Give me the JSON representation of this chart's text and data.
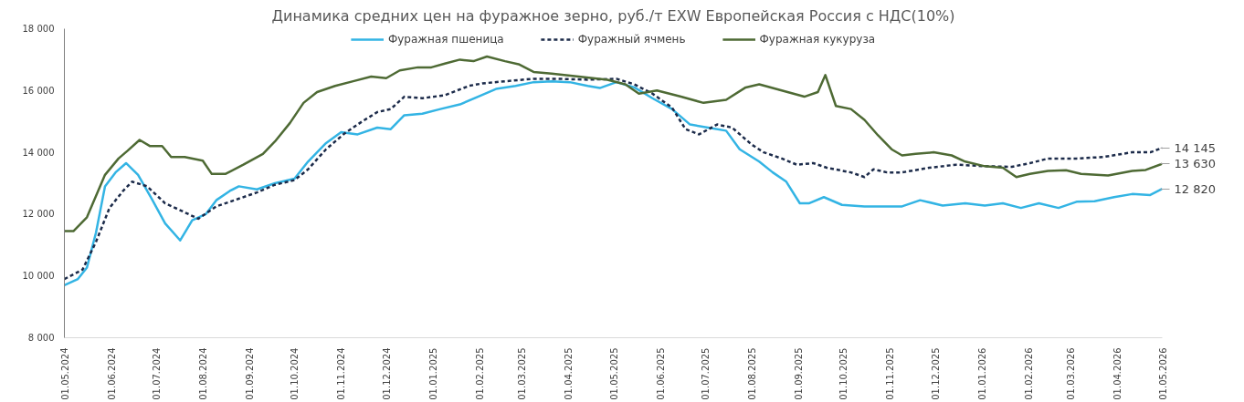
{
  "chart_data": {
    "type": "line",
    "title": "Динамика средних цен на фуражное зерно, руб./т EXW Европейская Россия с НДС(10%)",
    "legend": "top",
    "grid": false,
    "line_style": "solid",
    "xlim": [
      "2024-05-01",
      "2026-05-01"
    ],
    "xticks": [
      {
        "value": "2024-05-01",
        "label": "01.05.2024"
      },
      {
        "value": "2024-06-01",
        "label": "01.06.2024"
      },
      {
        "value": "2024-07-01",
        "label": "01.07.2024"
      },
      {
        "value": "2024-08-01",
        "label": "01.08.2024"
      },
      {
        "value": "2024-09-01",
        "label": "01.09.2024"
      },
      {
        "value": "2024-10-01",
        "label": "01.10.2024"
      },
      {
        "value": "2024-11-01",
        "label": "01.11.2024"
      },
      {
        "value": "2024-12-01",
        "label": "01.12.2024"
      },
      {
        "value": "2025-01-01",
        "label": "01.01.2025"
      },
      {
        "value": "2025-02-01",
        "label": "01.02.2025"
      },
      {
        "value": "2025-03-01",
        "label": "01.03.2025"
      },
      {
        "value": "2025-04-01",
        "label": "01.04.2025"
      },
      {
        "value": "2025-05-01",
        "label": "01.05.2025"
      },
      {
        "value": "2025-06-01",
        "label": "01.06.2025"
      },
      {
        "value": "2025-07-01",
        "label": "01.07.2025"
      },
      {
        "value": "2025-08-01",
        "label": "01.08.2025"
      },
      {
        "value": "2025-09-01",
        "label": "01.09.2025"
      },
      {
        "value": "2025-10-01",
        "label": "01.10.2025"
      },
      {
        "value": "2025-11-01",
        "label": "01.11.2025"
      },
      {
        "value": "2025-12-01",
        "label": "01.12.2025"
      },
      {
        "value": "2026-01-01",
        "label": "01.01.2026"
      },
      {
        "value": "2026-02-01",
        "label": "01.02.2026"
      },
      {
        "value": "2026-03-01",
        "label": "01.03.2026"
      },
      {
        "value": "2026-04-01",
        "label": "01.04.2026"
      },
      {
        "value": "2026-05-01",
        "label": "01.05.2026"
      }
    ],
    "ylim": [
      8000,
      18000
    ],
    "yticks": [
      {
        "value": 8000,
        "label": "8 000"
      },
      {
        "value": 10000,
        "label": "10 000"
      },
      {
        "value": 12000,
        "label": "12 000"
      },
      {
        "value": 14000,
        "label": "14 000"
      },
      {
        "value": 16000,
        "label": "16 000"
      },
      {
        "value": 18000,
        "label": "18 000"
      }
    ],
    "series": [
      {
        "name": "Фуражная пшеница",
        "color": "#33b4e4",
        "x": [
          "2024-05-01",
          "2024-05-10",
          "2024-05-16",
          "2024-05-22",
          "2024-05-28",
          "2024-06-04",
          "2024-06-11",
          "2024-06-19",
          "2024-06-28",
          "2024-07-07",
          "2024-07-17",
          "2024-07-25",
          "2024-08-03",
          "2024-08-10",
          "2024-08-19",
          "2024-08-25",
          "2024-09-06",
          "2024-09-18",
          "2024-10-01",
          "2024-10-10",
          "2024-10-22",
          "2024-11-01",
          "2024-11-12",
          "2024-11-25",
          "2024-12-04",
          "2024-12-13",
          "2024-12-25",
          "2025-01-06",
          "2025-01-19",
          "2025-01-31",
          "2025-02-12",
          "2025-02-25",
          "2025-03-09",
          "2025-03-21",
          "2025-04-02",
          "2025-04-14",
          "2025-04-22",
          "2025-05-03",
          "2025-05-15",
          "2025-05-27",
          "2025-06-09",
          "2025-06-21",
          "2025-07-03",
          "2025-07-15",
          "2025-07-24",
          "2025-08-06",
          "2025-08-15",
          "2025-08-24",
          "2025-09-02",
          "2025-09-08",
          "2025-09-18",
          "2025-09-30",
          "2025-10-15",
          "2025-11-09",
          "2025-11-21",
          "2025-12-06",
          "2025-12-21",
          "2026-01-03",
          "2026-01-15",
          "2026-01-27",
          "2026-02-08",
          "2026-02-21",
          "2026-03-05",
          "2026-03-17",
          "2026-03-30",
          "2026-04-11",
          "2026-04-23",
          "2026-05-01"
        ],
        "values": [
          9700,
          9900,
          10270,
          11400,
          12900,
          13350,
          13650,
          13270,
          12500,
          11700,
          11150,
          11800,
          12000,
          12450,
          12750,
          12900,
          12800,
          13000,
          13150,
          13700,
          14300,
          14650,
          14580,
          14800,
          14750,
          15200,
          15250,
          15400,
          15550,
          15800,
          16050,
          16150,
          16270,
          16300,
          16270,
          16150,
          16080,
          16270,
          16100,
          15750,
          15400,
          14900,
          14800,
          14700,
          14100,
          13700,
          13350,
          13050,
          12350,
          12350,
          12550,
          12300,
          12250,
          12250,
          12450,
          12280,
          12350,
          12280,
          12350,
          12200,
          12350,
          12200,
          12400,
          12420,
          12550,
          12650,
          12620,
          12820
        ]
      },
      {
        "name": "Фуражный ячмень",
        "color": "#1c2b4a",
        "line_style": "dashed",
        "x": [
          "2024-05-01",
          "2024-05-13",
          "2024-05-22",
          "2024-05-31",
          "2024-06-09",
          "2024-06-15",
          "2024-06-25",
          "2024-07-07",
          "2024-07-16",
          "2024-07-29",
          "2024-08-10",
          "2024-08-22",
          "2024-09-06",
          "2024-09-18",
          "2024-10-01",
          "2024-10-10",
          "2024-10-22",
          "2024-11-03",
          "2024-11-15",
          "2024-11-25",
          "2024-12-04",
          "2024-12-13",
          "2024-12-25",
          "2025-01-09",
          "2025-01-25",
          "2025-02-03",
          "2025-02-18",
          "2025-03-09",
          "2025-03-24",
          "2025-04-14",
          "2025-05-03",
          "2025-05-15",
          "2025-05-27",
          "2025-06-09",
          "2025-06-18",
          "2025-06-27",
          "2025-07-09",
          "2025-07-19",
          "2025-08-01",
          "2025-08-09",
          "2025-08-21",
          "2025-08-31",
          "2025-09-11",
          "2025-09-20",
          "2025-10-06",
          "2025-10-15",
          "2025-10-21",
          "2025-10-30",
          "2025-11-09",
          "2025-11-27",
          "2025-12-15",
          "2026-01-03",
          "2026-01-21",
          "2026-02-02",
          "2026-02-14",
          "2026-03-05",
          "2026-03-23",
          "2026-04-11",
          "2026-04-23",
          "2026-05-01"
        ],
        "values": [
          9900,
          10200,
          11100,
          12200,
          12750,
          13050,
          12900,
          12350,
          12150,
          11850,
          12250,
          12450,
          12700,
          12950,
          13100,
          13450,
          14100,
          14600,
          15000,
          15300,
          15400,
          15800,
          15750,
          15850,
          16150,
          16230,
          16300,
          16380,
          16380,
          16350,
          16380,
          16200,
          15900,
          15450,
          14750,
          14580,
          14900,
          14800,
          14250,
          14000,
          13800,
          13600,
          13650,
          13500,
          13350,
          13200,
          13450,
          13350,
          13350,
          13500,
          13600,
          13550,
          13530,
          13650,
          13800,
          13800,
          13850,
          14000,
          14000,
          14145
        ]
      },
      {
        "name": "Фуражная кукуруза",
        "color": "#4e6a34",
        "x": [
          "2024-05-01",
          "2024-05-07",
          "2024-05-16",
          "2024-05-28",
          "2024-06-06",
          "2024-06-12",
          "2024-06-20",
          "2024-06-27",
          "2024-07-05",
          "2024-07-11",
          "2024-07-20",
          "2024-08-01",
          "2024-08-07",
          "2024-08-16",
          "2024-08-28",
          "2024-09-10",
          "2024-09-18",
          "2024-09-28",
          "2024-10-07",
          "2024-10-16",
          "2024-10-28",
          "2024-11-09",
          "2024-11-21",
          "2024-12-01",
          "2024-12-10",
          "2024-12-22",
          "2024-12-31",
          "2025-01-09",
          "2025-01-19",
          "2025-01-28",
          "2025-02-06",
          "2025-02-18",
          "2025-02-27",
          "2025-03-09",
          "2025-03-21",
          "2025-04-08",
          "2025-04-27",
          "2025-05-09",
          "2025-05-18",
          "2025-05-30",
          "2025-06-15",
          "2025-06-30",
          "2025-07-15",
          "2025-07-28",
          "2025-08-06",
          "2025-08-21",
          "2025-09-05",
          "2025-09-14",
          "2025-09-19",
          "2025-09-26",
          "2025-10-06",
          "2025-10-15",
          "2025-10-24",
          "2025-11-02",
          "2025-11-09",
          "2025-11-18",
          "2025-11-30",
          "2025-12-12",
          "2025-12-21",
          "2026-01-03",
          "2026-01-15",
          "2026-01-24",
          "2026-02-02",
          "2026-02-14",
          "2026-02-26",
          "2026-03-08",
          "2026-03-26",
          "2026-04-11",
          "2026-04-20",
          "2026-05-01"
        ],
        "values": [
          11450,
          11450,
          11900,
          13270,
          13800,
          14050,
          14400,
          14200,
          14200,
          13850,
          13850,
          13730,
          13300,
          13300,
          13600,
          13950,
          14350,
          14950,
          15600,
          15950,
          16150,
          16300,
          16450,
          16400,
          16650,
          16750,
          16750,
          16870,
          17000,
          16950,
          17100,
          16950,
          16850,
          16600,
          16550,
          16450,
          16350,
          16200,
          15900,
          16000,
          15800,
          15600,
          15700,
          16100,
          16200,
          16000,
          15800,
          15950,
          16500,
          15500,
          15400,
          15050,
          14550,
          14100,
          13900,
          13950,
          14000,
          13900,
          13700,
          13550,
          13500,
          13200,
          13300,
          13400,
          13420,
          13300,
          13250,
          13400,
          13430,
          13630
        ]
      }
    ],
    "annotations": [
      {
        "text": "14 145",
        "x": "2026-05-01",
        "y": 14145
      },
      {
        "text": "13 630",
        "x": "2026-05-01",
        "y": 13630
      },
      {
        "text": "12 820",
        "x": "2026-05-01",
        "y": 12820
      }
    ]
  }
}
